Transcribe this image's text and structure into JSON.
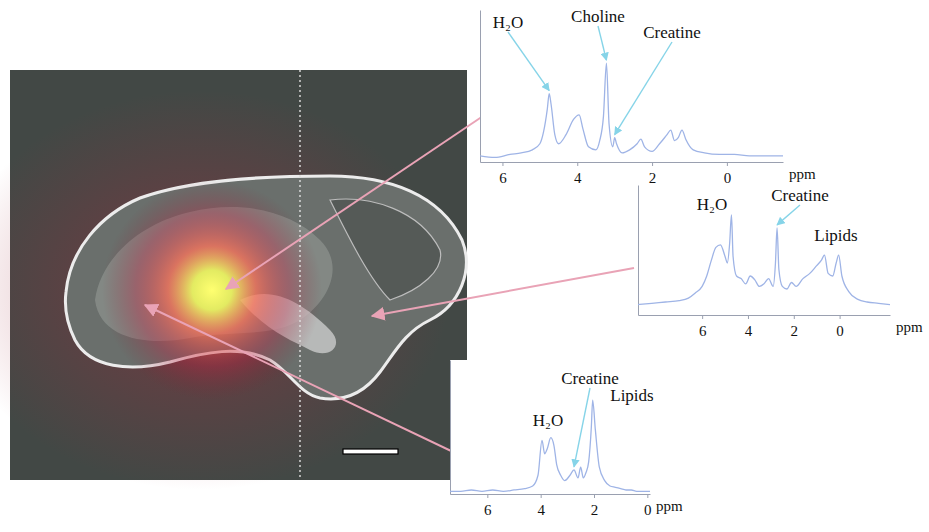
{
  "chart_data": [
    {
      "type": "line",
      "color": "#9fb4e6",
      "tick_labels": "x",
      "xlim": [
        6.6,
        -1.5
      ],
      "xticks": [
        6,
        4,
        2,
        0
      ],
      "ylim": [
        0,
        100
      ],
      "x_label": "ppm",
      "x": [
        6.6,
        6.2,
        5.8,
        5.5,
        5.2,
        5.0,
        4.9,
        4.8,
        4.75,
        4.7,
        4.6,
        4.5,
        4.3,
        4.1,
        3.95,
        3.85,
        3.7,
        3.5,
        3.4,
        3.3,
        3.22,
        3.15,
        3.05,
        3.0,
        2.95,
        2.8,
        2.6,
        2.4,
        2.3,
        2.2,
        2.0,
        1.8,
        1.6,
        1.5,
        1.4,
        1.3,
        1.2,
        1.1,
        0.9,
        0.6,
        0.2,
        -0.2,
        -0.6,
        -1.0,
        -1.5
      ],
      "values": [
        4,
        3,
        5,
        6,
        8,
        12,
        20,
        35,
        45,
        38,
        18,
        12,
        18,
        28,
        31,
        22,
        10,
        8,
        14,
        30,
        65,
        25,
        10,
        16,
        12,
        6,
        8,
        12,
        15,
        10,
        7,
        12,
        18,
        21,
        14,
        16,
        21,
        15,
        8,
        6,
        5,
        5,
        4,
        4,
        4
      ],
      "annotations": [
        {
          "text": "H₂O",
          "x": 4.75,
          "y": 45
        },
        {
          "text": "Choline",
          "x": 3.22,
          "y": 65
        },
        {
          "text": "Creatine",
          "x": 3.0,
          "y": 16
        }
      ]
    },
    {
      "type": "line",
      "color": "#9fb4e6",
      "tick_labels": "x",
      "xlim": [
        8.8,
        -2.2
      ],
      "xticks": [
        6,
        4,
        2,
        0
      ],
      "ylim": [
        0,
        100
      ],
      "x_label": "ppm",
      "x": [
        8.8,
        8.2,
        7.6,
        7.0,
        6.6,
        6.3,
        6.0,
        5.8,
        5.6,
        5.4,
        5.2,
        5.0,
        4.9,
        4.8,
        4.72,
        4.65,
        4.5,
        4.3,
        4.1,
        3.9,
        3.7,
        3.5,
        3.3,
        3.1,
        2.9,
        2.8,
        2.73,
        2.65,
        2.5,
        2.3,
        2.1,
        1.9,
        1.6,
        1.3,
        1.0,
        0.8,
        0.66,
        0.5,
        0.3,
        0.15,
        0.04,
        -0.1,
        -0.4,
        -0.8,
        -1.2,
        -1.7,
        -2.2
      ],
      "values": [
        8,
        9,
        10,
        11,
        13,
        17,
        22,
        30,
        42,
        52,
        54,
        45,
        40,
        55,
        77,
        45,
        30,
        28,
        24,
        30,
        27,
        22,
        24,
        28,
        22,
        40,
        67,
        35,
        22,
        20,
        25,
        22,
        28,
        32,
        38,
        42,
        46,
        32,
        30,
        40,
        46,
        30,
        18,
        12,
        10,
        9,
        8
      ],
      "annotations": [
        {
          "text": "H₂O",
          "x": 4.72,
          "y": 77
        },
        {
          "text": "Creatine",
          "x": 2.73,
          "y": 67
        },
        {
          "text": "Lipids",
          "x": 0.35,
          "y": 46
        }
      ]
    },
    {
      "type": "line",
      "color": "#9fb4e6",
      "tick_labels": "x",
      "xlim": [
        7.4,
        -0.1
      ],
      "xticks": [
        6,
        4,
        2,
        0
      ],
      "ylim": [
        0,
        100
      ],
      "x_label": "ppm",
      "x": [
        7.4,
        7.0,
        6.6,
        6.2,
        5.8,
        5.4,
        5.0,
        4.6,
        4.3,
        4.1,
        3.95,
        3.85,
        3.75,
        3.62,
        3.5,
        3.4,
        3.25,
        3.1,
        2.9,
        2.75,
        2.6,
        2.5,
        2.4,
        2.3,
        2.2,
        2.1,
        2.05,
        1.95,
        1.8,
        1.6,
        1.4,
        1.2,
        1.0,
        0.8,
        0.6,
        0.4,
        0.2,
        -0.1
      ],
      "values": [
        2,
        2,
        3,
        2,
        3,
        2,
        3,
        4,
        6,
        14,
        40,
        30,
        34,
        42,
        36,
        22,
        14,
        10,
        14,
        18,
        12,
        20,
        12,
        16,
        24,
        50,
        70,
        48,
        20,
        10,
        6,
        5,
        4,
        3,
        3,
        2,
        2,
        2
      ],
      "annotations": [
        {
          "text": "H₂O",
          "x": 3.95,
          "y": 40
        },
        {
          "text": "Creatine",
          "x": 2.75,
          "y": 18
        },
        {
          "text": "Lipids",
          "x": 2.05,
          "y": 70
        }
      ]
    }
  ]
}
